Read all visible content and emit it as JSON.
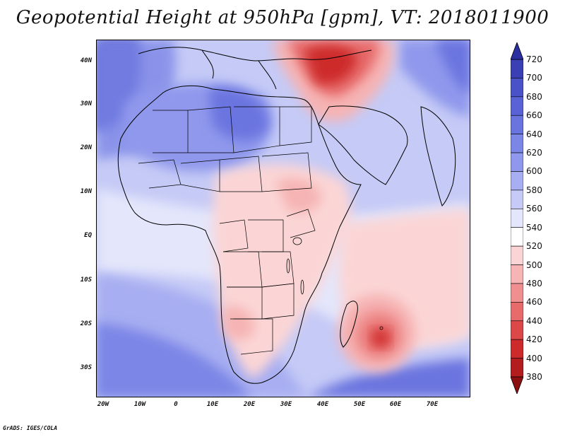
{
  "title": "Geopotential Height at 950hPa [gpm], VT: 2018011900",
  "credit": "GrADS: IGES/COLA",
  "lat_labels": [
    "40N",
    "30N",
    "20N",
    "10N",
    "EQ",
    "10S",
    "20S",
    "30S"
  ],
  "lon_labels": [
    "20W",
    "10W",
    "0",
    "10E",
    "20E",
    "30E",
    "40E",
    "50E",
    "60E",
    "70E"
  ],
  "colorbar": {
    "levels": [
      "720",
      "700",
      "680",
      "660",
      "640",
      "620",
      "600",
      "580",
      "560",
      "540",
      "520",
      "500",
      "480",
      "460",
      "440",
      "420",
      "400",
      "380"
    ],
    "colors": [
      "#2b2f9f",
      "#3a40b4",
      "#4a52c8",
      "#5a63d6",
      "#6a74df",
      "#7c86e6",
      "#8f98ec",
      "#a7aef1",
      "#c5caf6",
      "#e4e6fb",
      "#ffffff",
      "#fbd5d5",
      "#f6b4b4",
      "#ef8f8f",
      "#e76b6b",
      "#dc4747",
      "#cd2b2b",
      "#b41d1d",
      "#8c1010"
    ]
  }
}
